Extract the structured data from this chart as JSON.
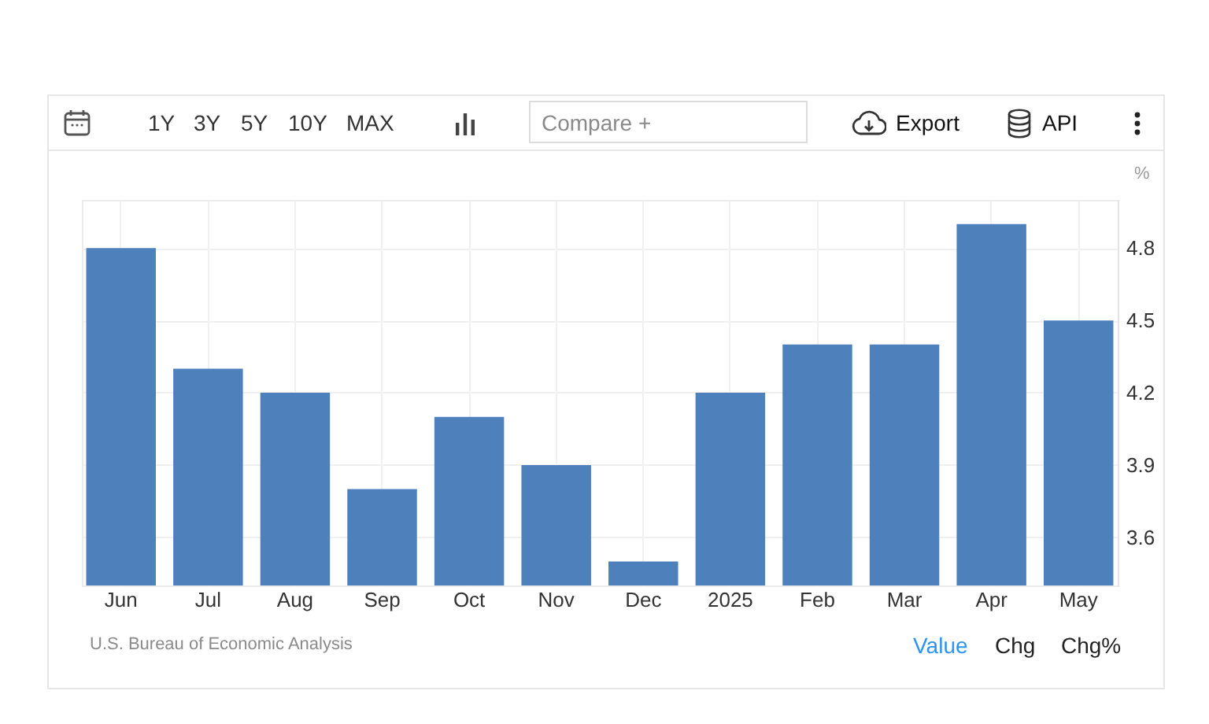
{
  "chart_data": {
    "type": "bar",
    "categories": [
      "Jun",
      "Jul",
      "Aug",
      "Sep",
      "Oct",
      "Nov",
      "Dec",
      "2025",
      "Feb",
      "Mar",
      "Apr",
      "May"
    ],
    "values": [
      4.8,
      4.3,
      4.2,
      3.8,
      4.1,
      3.9,
      3.5,
      4.2,
      4.4,
      4.4,
      4.9,
      4.5
    ],
    "color": "#4e80bc",
    "ylabel": "%",
    "ylim": [
      3.4,
      5.0
    ],
    "yticks": [
      3.6,
      3.9,
      4.2,
      4.5,
      4.8
    ],
    "grid": true,
    "annotations": [
      "1Y",
      "3Y",
      "5Y",
      "10Y",
      "MAX",
      "Compare +",
      "Export",
      "API",
      "U.S. Bureau of Economic Analysis",
      "Value",
      "Chg",
      "Chg%"
    ]
  }
}
